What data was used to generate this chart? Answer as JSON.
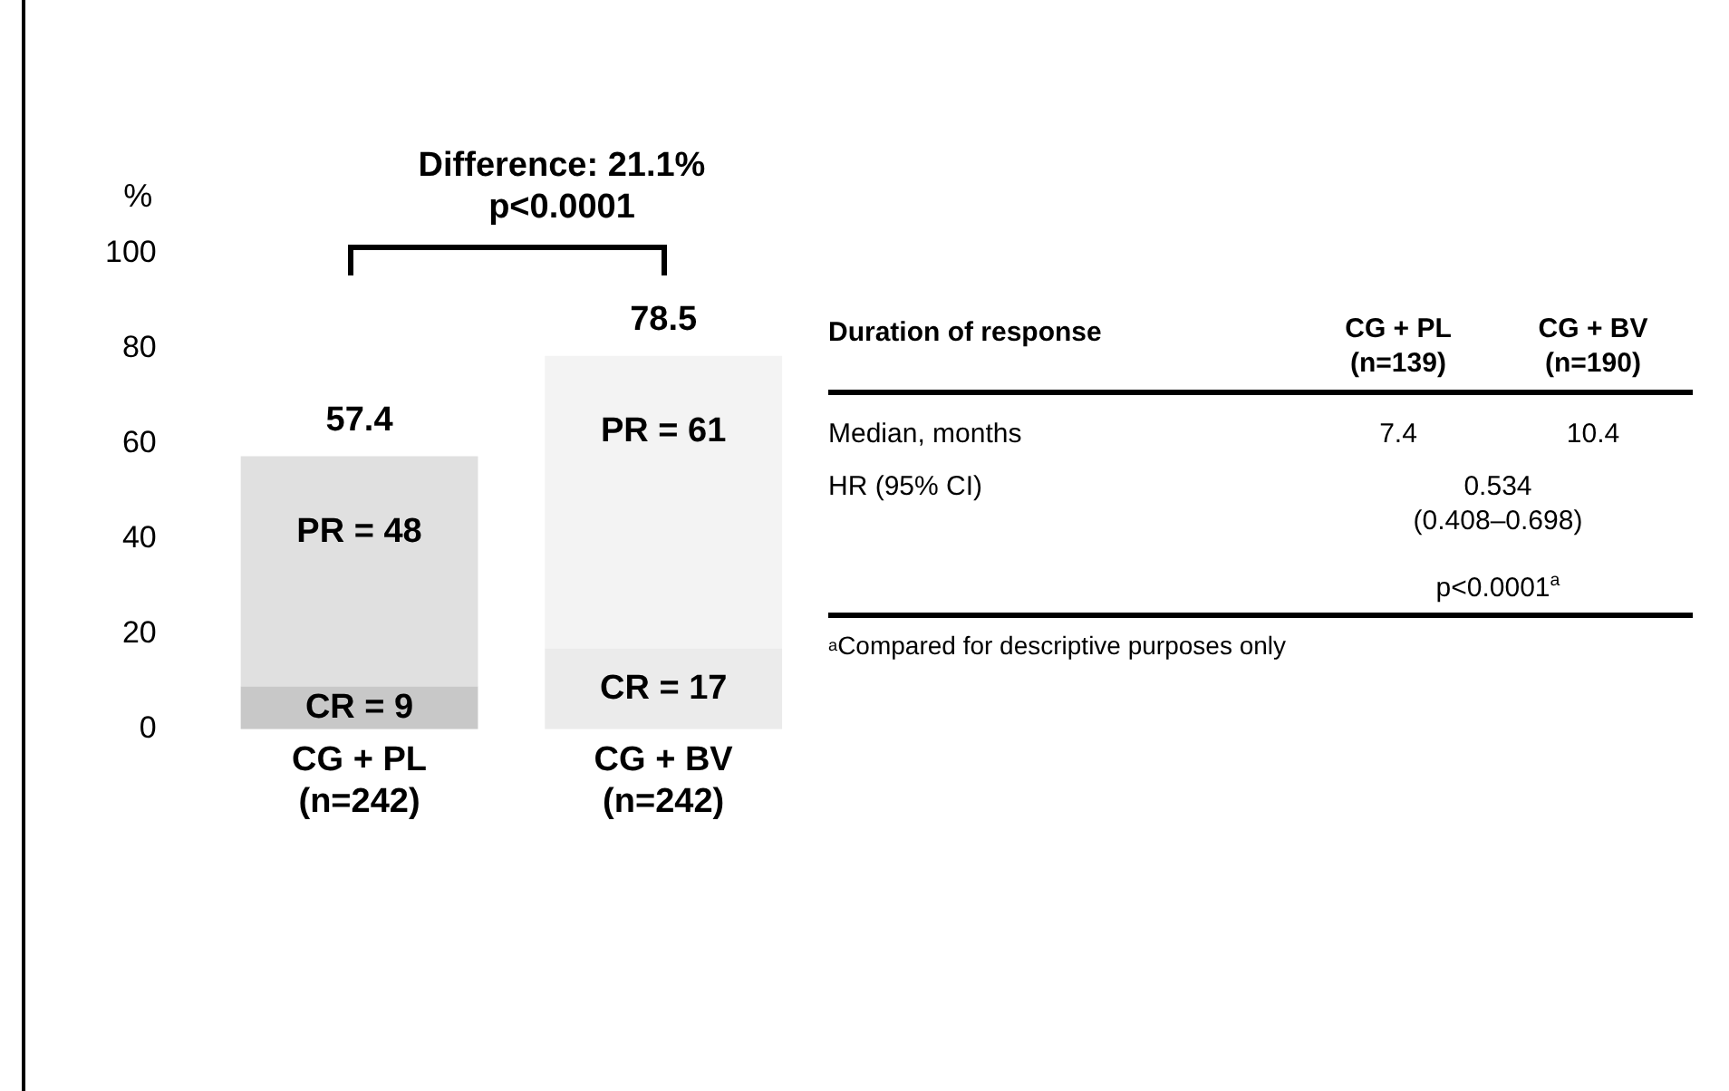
{
  "chart_data": [
    {
      "type": "bar",
      "stacked": true,
      "ylabel": "%",
      "annotations": [
        "Difference: 21.1%\np<0.0001"
      ],
      "categories": [
        "CG + PL\n(n=242)",
        "CG + BV\n(n=242)"
      ],
      "series": [
        {
          "colors": [
            "#c8c8c8",
            "#ebebeb"
          ],
          "values": [
            9,
            17
          ],
          "value_labels": [
            "CR = 9",
            "CR = 17"
          ]
        },
        {
          "colors": [
            "#e0e0e0",
            "#f3f3f3"
          ],
          "values": [
            48.4,
            61.5
          ],
          "value_labels": [
            "PR = 48",
            "PR = 61"
          ]
        }
      ],
      "totals": [
        "57.4",
        "78.5"
      ],
      "ylim": [
        0,
        100
      ],
      "yticks": [
        0,
        20,
        40,
        60,
        80,
        100
      ],
      "grid": false,
      "legend": false
    },
    {
      "type": "other",
      "title": "Duration of response",
      "annotations": [
        "CG + PL\n(n=139)",
        "CG + BV\n(n=190)",
        "Median, months",
        "7.4",
        "10.4",
        "HR (95% CI)",
        "0.534\n(0.408–0.698)",
        "p<0.0001$^{a}$",
        "$^{a}$Compared for descriptive purposes only"
      ]
    }
  ]
}
